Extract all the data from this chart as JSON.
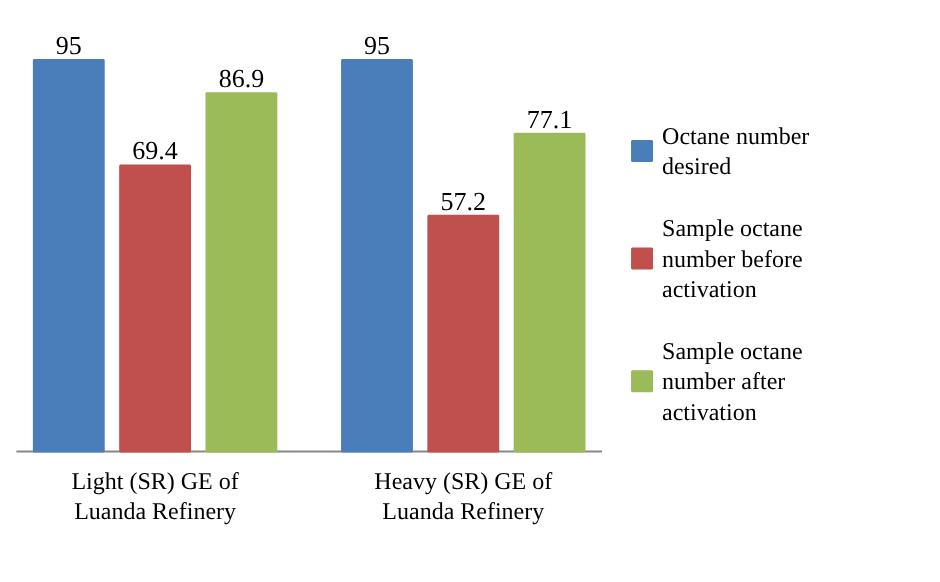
{
  "chart_data": {
    "type": "bar",
    "categories": [
      "Light (SR) GE of Luanda Refinery",
      "Heavy (SR) GE of Luanda Refinery"
    ],
    "series": [
      {
        "name": "Octane number desired",
        "color": "#4a7ebb",
        "values": [
          95,
          95
        ]
      },
      {
        "name": "Sample octane number before activation",
        "color": "#c0504d",
        "values": [
          69.4,
          57.2
        ]
      },
      {
        "name": "Sample octane number after activation",
        "color": "#9bbb59",
        "values": [
          86.9,
          77.1
        ]
      }
    ],
    "data_labels": true,
    "legend": "right"
  }
}
